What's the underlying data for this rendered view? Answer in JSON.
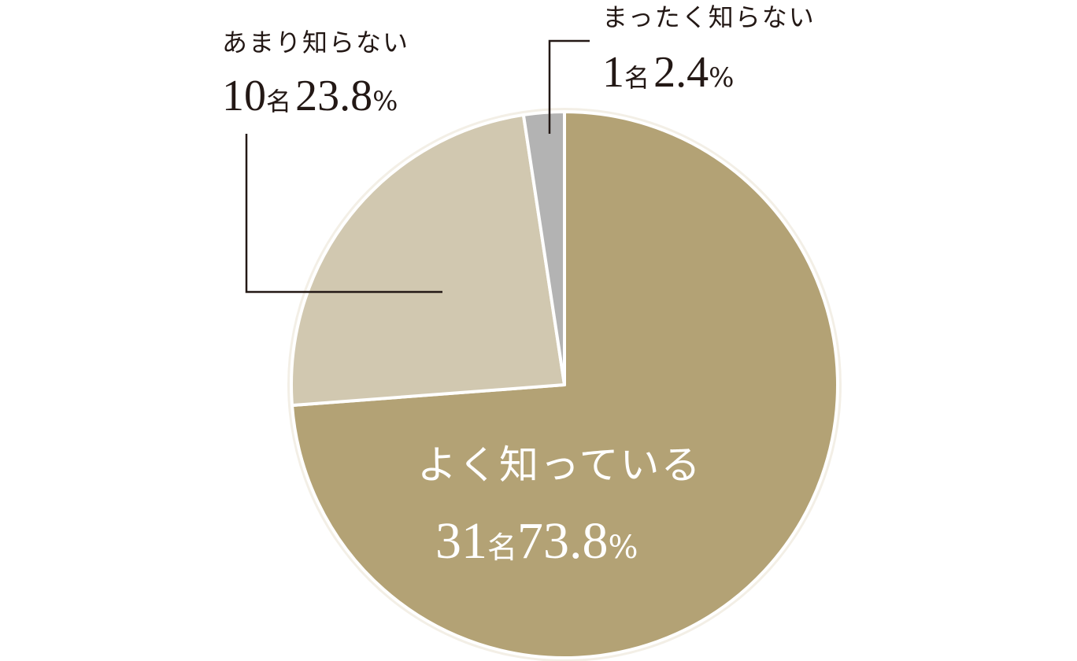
{
  "chart_data": {
    "type": "pie",
    "start": "top",
    "direction": "clockwise",
    "unit_label": "名",
    "slices": [
      {
        "label": "よく知っている",
        "count": 31,
        "percent": 73.8,
        "color": "#b3a275"
      },
      {
        "label": "あまり知らない",
        "count": 10,
        "percent": 23.8,
        "color": "#d1c8b0"
      },
      {
        "label": "まったく知らない",
        "count": 1,
        "percent": 2.4,
        "color": "#b3b3b3"
      }
    ],
    "percent_sign": "%",
    "text_color": "#231815",
    "outline_color": "#f3efe6"
  }
}
